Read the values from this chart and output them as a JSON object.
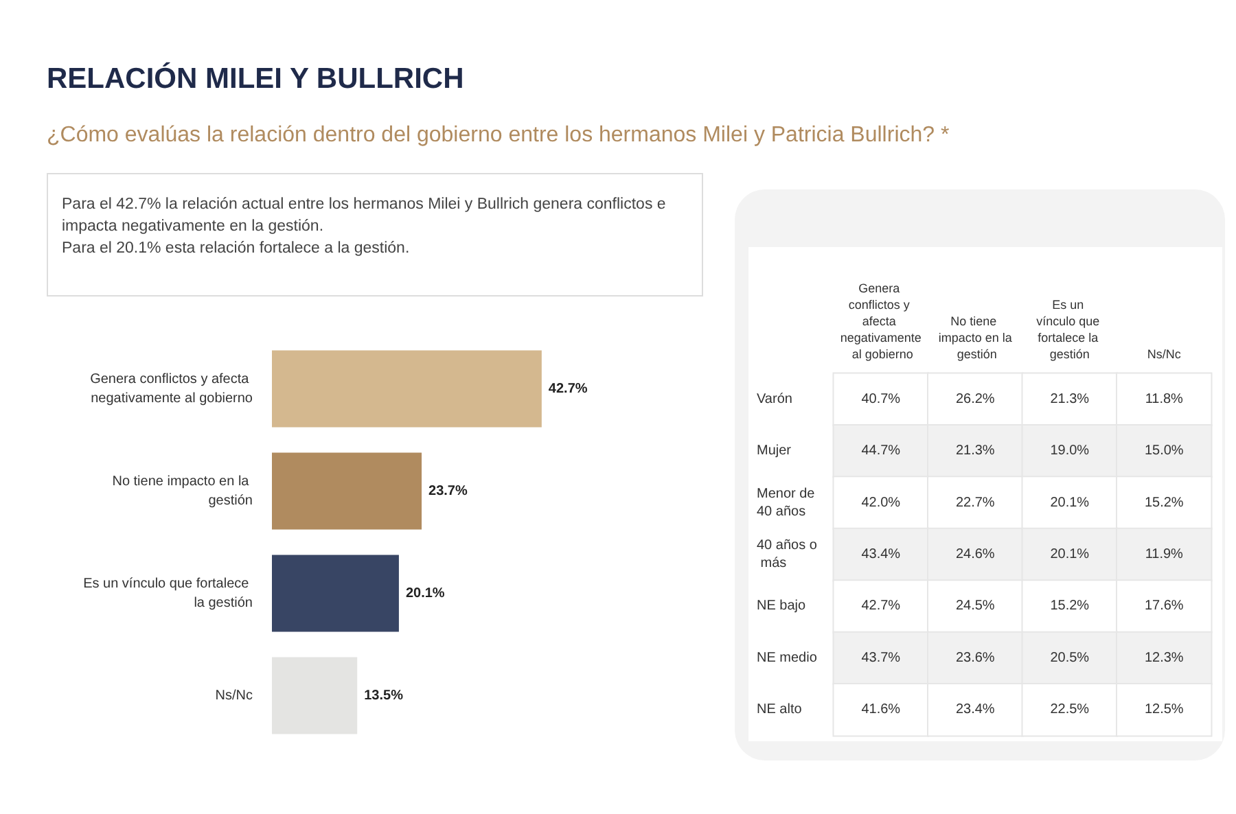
{
  "chart_data": [
    {
      "type": "bar",
      "title": "RELACIÓN MILEI Y BULLRICH",
      "subtitle": "¿Cómo evalúas la relación dentro del gobierno entre los hermanos Milei y Patricia Bullrich?  *",
      "annotations": [
        "Para el 42.7% la relación actual entre los hermanos Milei y Bullrich genera conflictos e impacta negativamente en la gestión.",
        "Para el 20.1% esta relación fortalece a la gestión."
      ],
      "orientation": "horizontal",
      "categories": [
        "Genera conflictos y afecta negativamente al gobierno",
        "No tiene impacto en la gestión",
        "Es un vínculo que fortalece la gestión",
        "Ns/Nc"
      ],
      "values": [
        42.7,
        23.7,
        20.1,
        13.5
      ],
      "colors": [
        "#d4b88f",
        "#b08b5f",
        "#384564",
        "#e4e4e2"
      ],
      "value_labels": [
        "42.7%",
        "23.7%",
        "20.1%",
        "13.5%"
      ]
    },
    {
      "type": "heatmap",
      "categories": [
        "Genera conflictos y afecta negativamente al gobierno",
        "No tiene impacto en la gestión",
        "Es un vínculo que fortalece la gestión",
        "Ns/Nc"
      ],
      "y_categories": [
        "Varón",
        "Mujer",
        "Menor de 40 años",
        "40 años o más",
        "NE bajo",
        "NE medio",
        "NE alto"
      ],
      "cells": [
        [
          40.7,
          26.2,
          21.3,
          11.8
        ],
        [
          44.7,
          21.3,
          19.0,
          15.0
        ],
        [
          42.0,
          22.7,
          20.1,
          15.2
        ],
        [
          43.4,
          24.6,
          20.1,
          11.9
        ],
        [
          42.7,
          24.5,
          15.2,
          17.6
        ],
        [
          43.7,
          23.6,
          20.5,
          12.3
        ],
        [
          41.6,
          23.4,
          22.5,
          12.5
        ]
      ],
      "cell_labels": [
        [
          "40.7%",
          "26.2%",
          "21.3%",
          "11.8%"
        ],
        [
          "44.7%",
          "21.3%",
          "19.0%",
          "15.0%"
        ],
        [
          "42.0%",
          "22.7%",
          "20.1%",
          "15.2%"
        ],
        [
          "43.4%",
          "24.6%",
          "20.1%",
          "11.9%"
        ],
        [
          "42.7%",
          "24.5%",
          "15.2%",
          "17.6%"
        ],
        [
          "43.7%",
          "23.6%",
          "20.5%",
          "12.3%"
        ],
        [
          "41.6%",
          "23.4%",
          "22.5%",
          "12.5%"
        ]
      ]
    }
  ]
}
